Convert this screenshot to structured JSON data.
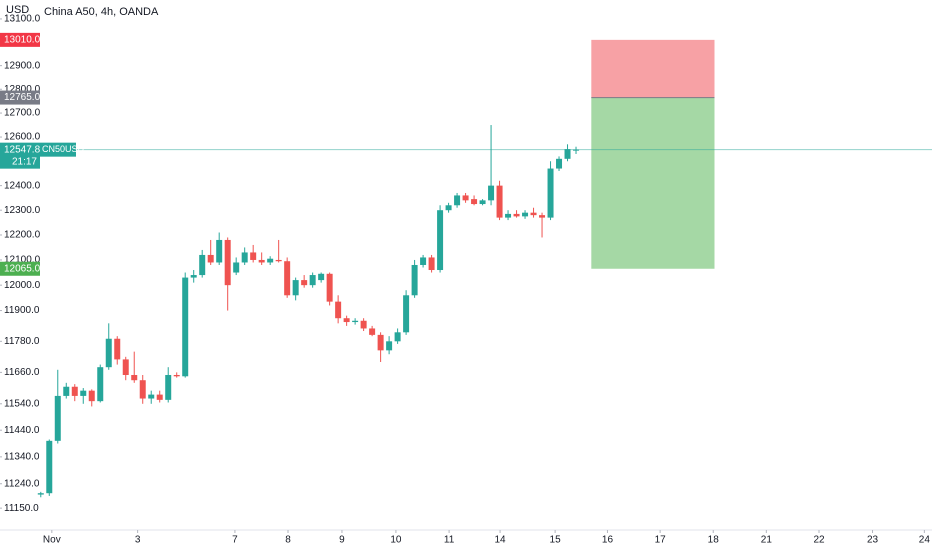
{
  "chart_data": {
    "type": "candlestick",
    "currency": "USD",
    "title": "China A50, 4h, OANDA",
    "up_color": "#26a69a",
    "down_color": "#ef5350",
    "log_scale": true,
    "ylim": [
      11070,
      13182
    ],
    "yticks": [
      {
        "value": 13100,
        "label": "13100.0"
      },
      {
        "value": 12900,
        "label": "12900.0"
      },
      {
        "value": 12800,
        "label": "12800.0"
      },
      {
        "value": 12700,
        "label": "12700.0"
      },
      {
        "value": 12600,
        "label": "12600.0"
      },
      {
        "value": 12400,
        "label": "12400.0"
      },
      {
        "value": 12300,
        "label": "12300.0"
      },
      {
        "value": 12200,
        "label": "12200.0"
      },
      {
        "value": 12100,
        "label": "12100.0"
      },
      {
        "value": 12000,
        "label": "12000.0"
      },
      {
        "value": 11900,
        "label": "11900.0"
      },
      {
        "value": 11780,
        "label": "11780.0"
      },
      {
        "value": 11660,
        "label": "11660.0"
      },
      {
        "value": 11540,
        "label": "11540.0"
      },
      {
        "value": 11440,
        "label": "11440.0"
      },
      {
        "value": 11340,
        "label": "11340.0"
      },
      {
        "value": 11240,
        "label": "11240.0"
      },
      {
        "value": 11150,
        "label": "11150.0"
      }
    ],
    "xlim": [
      -4.8,
      104.9
    ],
    "xticks": [
      {
        "value": 1.3,
        "label": "Nov"
      },
      {
        "value": 11.4,
        "label": "3"
      },
      {
        "value": 22.85,
        "label": "7"
      },
      {
        "value": 29.1,
        "label": "8"
      },
      {
        "value": 35.45,
        "label": "9"
      },
      {
        "value": 41.8,
        "label": "10"
      },
      {
        "value": 48.06,
        "label": "11"
      },
      {
        "value": 54.06,
        "label": "14"
      },
      {
        "value": 60.54,
        "label": "15"
      },
      {
        "value": 66.7,
        "label": "16"
      },
      {
        "value": 72.9,
        "label": "17"
      },
      {
        "value": 79.15,
        "label": "18"
      },
      {
        "value": 85.4,
        "label": "21"
      },
      {
        "value": 91.6,
        "label": "22"
      },
      {
        "value": 97.9,
        "label": "23"
      },
      {
        "value": 104,
        "label": "24"
      }
    ],
    "x": [
      0,
      1,
      2,
      3,
      4,
      5,
      6,
      7,
      8,
      9,
      10,
      11,
      12,
      13,
      14,
      15,
      16,
      17,
      18,
      19,
      20,
      21,
      22,
      23,
      24,
      25,
      26,
      27,
      28,
      29,
      30,
      31,
      32,
      33,
      34,
      35,
      36,
      37,
      38,
      39,
      40,
      41,
      42,
      43,
      44,
      45,
      46,
      47,
      48,
      49,
      50,
      51,
      52,
      53,
      54,
      55,
      56,
      57,
      58,
      59,
      60,
      61,
      62,
      63
    ],
    "open": [
      11200,
      11205,
      11400,
      11570,
      11605,
      11570,
      11590,
      11550,
      11680,
      11790,
      11710,
      11650,
      11630,
      11560,
      11575,
      11555,
      11650,
      11645,
      12030,
      12040,
      12120,
      12090,
      12180,
      12050,
      12090,
      12130,
      12100,
      12090,
      12100,
      12095,
      11960,
      12020,
      12000,
      12020,
      12045,
      11935,
      11870,
      11855,
      11860,
      11830,
      11805,
      11745,
      11780,
      11815,
      11960,
      12080,
      12110,
      12060,
      12300,
      12320,
      12360,
      12345,
      12325,
      12340,
      12400,
      12270,
      12285,
      12275,
      12290,
      12280,
      12270,
      12470,
      12510,
      12545
    ],
    "high": [
      11210,
      11405,
      11670,
      11620,
      11615,
      11600,
      11595,
      11690,
      11850,
      11800,
      11720,
      11740,
      11650,
      11590,
      11590,
      11680,
      11660,
      12050,
      12060,
      12140,
      12180,
      12210,
      12190,
      12110,
      12150,
      12160,
      12130,
      12115,
      12180,
      12110,
      12030,
      12040,
      12050,
      12050,
      12050,
      11960,
      11880,
      11870,
      11870,
      11840,
      11815,
      11800,
      11830,
      11980,
      12100,
      12120,
      12120,
      12320,
      12330,
      12370,
      12370,
      12360,
      12345,
      12650,
      12420,
      12300,
      12300,
      12300,
      12310,
      12290,
      12500,
      12520,
      12570,
      12560
    ],
    "low": [
      11190,
      11195,
      11390,
      11560,
      11550,
      11540,
      11530,
      11545,
      11670,
      11690,
      11630,
      11620,
      11540,
      11540,
      11545,
      11545,
      11640,
      11640,
      12010,
      12030,
      12080,
      12080,
      11900,
      12040,
      12080,
      12090,
      12080,
      12080,
      12090,
      11950,
      11940,
      11990,
      11990,
      12010,
      11920,
      11850,
      11840,
      11845,
      11820,
      11800,
      11700,
      11730,
      11770,
      11805,
      11950,
      12070,
      12050,
      12050,
      12290,
      12310,
      12330,
      12320,
      12320,
      12320,
      12260,
      12260,
      12270,
      12265,
      12270,
      12190,
      12260,
      12460,
      12500,
      12530
    ],
    "close": [
      11205,
      11400,
      11570,
      11605,
      11570,
      11590,
      11550,
      11680,
      11790,
      11710,
      11650,
      11630,
      11560,
      11575,
      11555,
      11650,
      11645,
      12030,
      12040,
      12120,
      12090,
      12180,
      12000,
      12090,
      12130,
      12100,
      12090,
      12105,
      12095,
      11960,
      12020,
      12000,
      12040,
      12045,
      11935,
      11870,
      11855,
      11860,
      11830,
      11805,
      11745,
      11780,
      11815,
      11960,
      12080,
      12110,
      12060,
      12300,
      12320,
      12360,
      12340,
      12325,
      12340,
      12400,
      12270,
      12285,
      12275,
      12290,
      12280,
      12270,
      12470,
      12510,
      12550,
      12547.8
    ],
    "last_price": {
      "value": 12547.8,
      "symbol": "CN50USD",
      "countdown": "21:17"
    },
    "position": {
      "x_start": 64.8,
      "x_end": 79.3,
      "stop": {
        "value": 13010,
        "label": "13010.0"
      },
      "entry": {
        "value": 12765,
        "label": "12765.0"
      },
      "target": {
        "value": 12065,
        "label": "12065.0"
      },
      "stop_color": "#f7a1a5",
      "entry_color": "#787b86",
      "target_color": "#a5d8a5",
      "stop_label_color": "#f23645",
      "target_label_color": "#4caf50"
    }
  }
}
